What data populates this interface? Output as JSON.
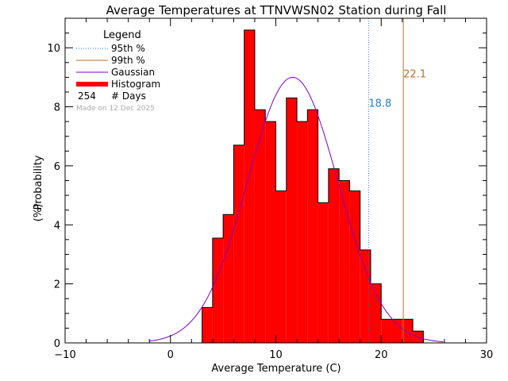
{
  "chart_data": {
    "type": "bar",
    "title": "Average Temperatures at TTNVWSN02 Station during Fall",
    "xlabel": "Average Temperature (C)",
    "ylabel_line1": "Probability",
    "ylabel_line2": "(%)",
    "xlim": [
      -10,
      30
    ],
    "ylim": [
      0,
      11
    ],
    "xticks": [
      -10,
      0,
      10,
      20,
      30
    ],
    "yticks": [
      0,
      2,
      4,
      6,
      8,
      10
    ],
    "bin_width": 1,
    "histogram": {
      "bin_left_edges": [
        3,
        4,
        5,
        6,
        7,
        8,
        9,
        10,
        11,
        12,
        13,
        14,
        15,
        16,
        17,
        18,
        19,
        20,
        21,
        22,
        23
      ],
      "values": [
        1.2,
        3.55,
        4.35,
        6.7,
        10.6,
        7.9,
        7.5,
        5.15,
        8.3,
        7.5,
        7.9,
        4.75,
        5.9,
        5.5,
        5.15,
        3.15,
        2.0,
        0.8,
        0.8,
        0.8,
        0.4
      ]
    },
    "gaussian": {
      "mean": 11.6,
      "peak": 9.0,
      "sigma": 4.3
    },
    "percentile_95": {
      "value": 18.8,
      "label": "18.8",
      "color": "#1e7fd6"
    },
    "percentile_99": {
      "value": 22.1,
      "label": "22.1",
      "color": "#b8712f"
    },
    "legend": {
      "title": "Legend",
      "entries": [
        "95th %",
        "99th %",
        "Gaussian",
        "Histogram"
      ],
      "count": "254",
      "count_label": "# Days"
    },
    "watermark": "Made on 12 Dec 2025",
    "colors": {
      "histogram": "#ff0000",
      "gaussian": "#8000c0",
      "watermark": "#aaaaaa"
    }
  }
}
